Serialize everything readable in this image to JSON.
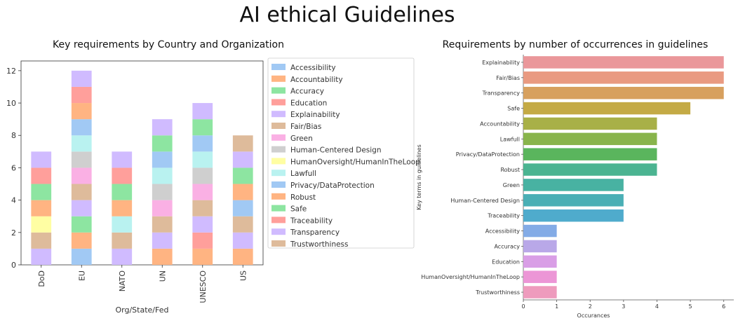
{
  "title": "AI ethical Guidelines",
  "chart_data": [
    {
      "type": "bar",
      "stacked": true,
      "title": "Key requirements by Country and Organization",
      "xlabel": "Org/State/Fed",
      "ylabel": "",
      "ylim": [
        0,
        12.6
      ],
      "yticks": [
        0,
        2,
        4,
        6,
        8,
        10,
        12
      ],
      "categories": [
        "DoD",
        "EU",
        "NATO",
        "UN",
        "UNESCO",
        "US"
      ],
      "legend_position": "right-outside",
      "series": [
        {
          "name": "Accessibility",
          "color": "#a1c9f4",
          "values": [
            0,
            1,
            0,
            0,
            0,
            0
          ]
        },
        {
          "name": "Accountability",
          "color": "#ffb482",
          "values": [
            0,
            1,
            0,
            1,
            1,
            1
          ]
        },
        {
          "name": "Accuracy",
          "color": "#8de5a1",
          "values": [
            0,
            1,
            0,
            0,
            0,
            0
          ]
        },
        {
          "name": "Education",
          "color": "#ff9f9b",
          "values": [
            0,
            0,
            0,
            0,
            1,
            0
          ]
        },
        {
          "name": "Explainability",
          "color": "#d0bbff",
          "values": [
            1,
            1,
            1,
            1,
            1,
            1
          ]
        },
        {
          "name": "Fair/Bias",
          "color": "#debb9b",
          "values": [
            1,
            1,
            1,
            1,
            1,
            1
          ]
        },
        {
          "name": "Green",
          "color": "#fab0e4",
          "values": [
            0,
            1,
            0,
            1,
            1,
            0
          ]
        },
        {
          "name": "Human-Centered Design",
          "color": "#cfcfcf",
          "values": [
            0,
            1,
            0,
            1,
            1,
            0
          ]
        },
        {
          "name": "HumanOversight/HumanInTheLoop",
          "color": "#fffea3",
          "values": [
            1,
            0,
            0,
            0,
            0,
            0
          ]
        },
        {
          "name": "Lawfull",
          "color": "#b9f2f0",
          "values": [
            0,
            1,
            1,
            1,
            1,
            0
          ]
        },
        {
          "name": "Privacy/DataProtection",
          "color": "#a1c9f4",
          "values": [
            0,
            1,
            0,
            1,
            1,
            1
          ]
        },
        {
          "name": "Robust",
          "color": "#ffb482",
          "values": [
            1,
            1,
            1,
            0,
            0,
            1
          ]
        },
        {
          "name": "Safe",
          "color": "#8de5a1",
          "values": [
            1,
            0,
            1,
            1,
            1,
            1
          ]
        },
        {
          "name": "Traceability",
          "color": "#ff9f9b",
          "values": [
            1,
            1,
            1,
            0,
            0,
            0
          ]
        },
        {
          "name": "Transparency",
          "color": "#d0bbff",
          "values": [
            1,
            1,
            1,
            1,
            1,
            1
          ]
        },
        {
          "name": "Trustworthiness",
          "color": "#debb9b",
          "values": [
            0,
            0,
            0,
            0,
            0,
            1
          ]
        }
      ]
    },
    {
      "type": "bar",
      "orientation": "horizontal",
      "title": "Requirements by number of occurrences in guidelines",
      "xlabel": "Occurances",
      "ylabel": "Key terms in guidelines",
      "xlim": [
        0,
        6.3
      ],
      "xticks": [
        0,
        1,
        2,
        3,
        4,
        5,
        6
      ],
      "categories": [
        "Explainability",
        "Fair/Bias",
        "Transparency",
        "Safe",
        "Accountability",
        "Lawfull",
        "Privacy/DataProtection",
        "Robust",
        "Green",
        "Human-Centered Design",
        "Traceability",
        "Accessibility",
        "Accuracy",
        "Education",
        "HumanOversight/HumanInTheLoop",
        "Trustworthiness"
      ],
      "values": [
        6,
        6,
        6,
        5,
        4,
        4,
        4,
        4,
        3,
        3,
        3,
        1,
        1,
        1,
        1,
        1
      ],
      "colors": [
        "#ea979a",
        "#e99a81",
        "#d7a05e",
        "#c4aa45",
        "#a8b047",
        "#88b44b",
        "#5ab55d",
        "#4bb491",
        "#48b2a2",
        "#4aafb5",
        "#4fabcc",
        "#83abe6",
        "#b9a8e8",
        "#d99ee6",
        "#ec96d6",
        "#ee9bbd"
      ]
    }
  ]
}
